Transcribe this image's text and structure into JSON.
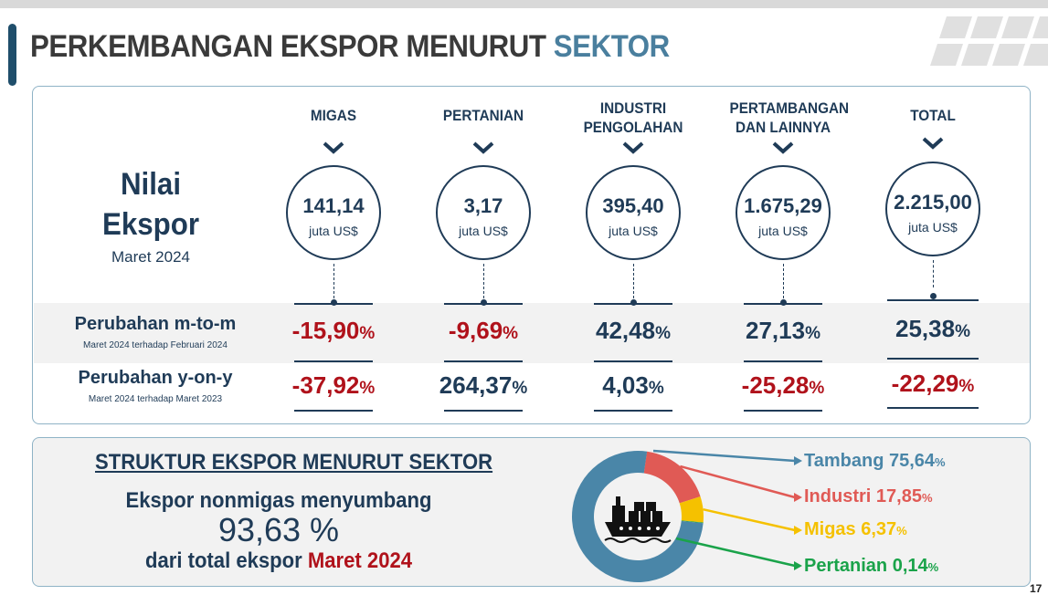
{
  "title": {
    "main": "PERKEMBANGAN EKSPOR MENURUT",
    "highlight": "SEKTOR"
  },
  "nilai": {
    "line1": "Nilai",
    "line2": "Ekspor",
    "period": "Maret 2024"
  },
  "rows": {
    "mtom": {
      "label": "Perubahan m-to-m",
      "sub": "Maret 2024 terhadap Februari 2024"
    },
    "yony": {
      "label": "Perubahan y-on-y",
      "sub": "Maret 2024 terhadap Maret 2023"
    }
  },
  "chart_data": [
    {
      "type": "table",
      "unit": "juta US$",
      "pct_suffix": "%",
      "sectors": [
        {
          "name_lines": [
            "MIGAS"
          ],
          "value": "141,14",
          "mtom": "-15,90",
          "yony": "-37,92"
        },
        {
          "name_lines": [
            "PERTANIAN"
          ],
          "value": "3,17",
          "mtom": "-9,69",
          "yony": "264,37"
        },
        {
          "name_lines": [
            "INDUSTRI",
            "PENGOLAHAN"
          ],
          "value": "395,40",
          "mtom": "42,48",
          "yony": "4,03"
        },
        {
          "name_lines": [
            "PERTAMBANGAN",
            "DAN LAINNYA"
          ],
          "value": "1.675,29",
          "mtom": "27,13",
          "yony": "-25,28"
        },
        {
          "name_lines": [
            "TOTAL"
          ],
          "value": "2.215,00",
          "mtom": "25,38",
          "yony": "-22,29"
        }
      ]
    },
    {
      "type": "pie",
      "title": "STRUKTUR EKSPOR MENURUT SEKTOR",
      "slices": [
        {
          "label": "Tambang",
          "value": 75.64,
          "display": "75,64",
          "color": "#4a86a8"
        },
        {
          "label": "Industri",
          "value": 17.85,
          "display": "17,85",
          "color": "#e05a55"
        },
        {
          "label": "Migas",
          "value": 6.37,
          "display": "6,37",
          "color": "#f5c100"
        },
        {
          "label": "Pertanian",
          "value": 0.14,
          "display": "0,14",
          "color": "#1aa34a"
        }
      ],
      "pct_suffix": "%"
    }
  ],
  "structure": {
    "title": "STRUKTUR EKSPOR MENURUT SEKTOR",
    "line1": "Ekspor nonmigas menyumbang",
    "big": "93,63 %",
    "line3_prefix": "dari total ekspor",
    "line3_period": "Maret 2024"
  },
  "icons": {
    "ship": "cargo-ship-icon",
    "logo": "bps-logo-icon"
  },
  "colors": {
    "navy": "#1f3b57",
    "negative": "#b0121b",
    "accent": "#4a7f9e"
  },
  "page_number": "17"
}
